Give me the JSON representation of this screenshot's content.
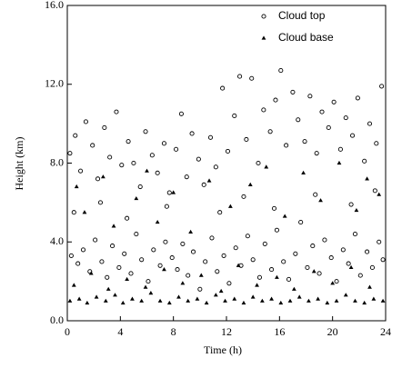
{
  "chart_data": {
    "type": "scatter",
    "xlabel": "Time (h)",
    "ylabel": "Height (km)",
    "xlim": [
      0,
      24
    ],
    "xticks": [
      0,
      4,
      8,
      12,
      16,
      20,
      24
    ],
    "ylim": [
      0,
      16
    ],
    "yticks": [
      {
        "value": 0,
        "label": "0.0"
      },
      {
        "value": 4,
        "label": "4.0"
      },
      {
        "value": 8,
        "label": "8.0"
      },
      {
        "value": 12,
        "label": "12.0"
      },
      {
        "value": 16,
        "label": "16.0"
      }
    ],
    "legend": "upper right",
    "series": [
      {
        "name": "Cloud top",
        "marker": "circle",
        "color": "#000000",
        "x": [
          0.3,
          0.8,
          1.2,
          1.7,
          2.1,
          2.6,
          3.0,
          3.4,
          3.9,
          4.3,
          4.8,
          5.2,
          5.6,
          6.1,
          6.5,
          7.0,
          7.4,
          7.9,
          8.3,
          8.7,
          9.1,
          9.5,
          10.0,
          10.4,
          10.9,
          11.3,
          11.8,
          12.2,
          12.7,
          13.1,
          13.6,
          14.0,
          14.5,
          14.9,
          15.4,
          15.8,
          16.3,
          16.7,
          17.2,
          17.6,
          18.1,
          18.5,
          19.0,
          19.4,
          19.9,
          20.3,
          20.8,
          21.2,
          21.7,
          22.1,
          22.6,
          23.0,
          23.5,
          23.8,
          0.2,
          0.6,
          1.0,
          1.4,
          1.9,
          2.3,
          2.8,
          3.2,
          3.7,
          4.1,
          4.6,
          5.0,
          5.5,
          5.9,
          6.4,
          6.8,
          7.3,
          7.7,
          8.2,
          8.6,
          9.0,
          9.4,
          9.9,
          10.3,
          10.8,
          11.2,
          11.7,
          12.1,
          12.6,
          13.0,
          13.5,
          13.9,
          14.4,
          14.8,
          15.3,
          15.7,
          16.1,
          16.5,
          17.0,
          17.4,
          17.9,
          18.3,
          18.8,
          19.2,
          19.7,
          20.1,
          20.6,
          21.0,
          21.5,
          21.9,
          22.4,
          22.8,
          23.3,
          23.7,
          0.5,
          2.5,
          4.5,
          7.5,
          11.5,
          13.3,
          15.6,
          18.7,
          21.4,
          23.2
        ],
        "values": [
          3.3,
          2.9,
          3.6,
          2.5,
          4.1,
          3.0,
          2.2,
          3.8,
          2.7,
          3.4,
          2.4,
          4.4,
          3.1,
          2.0,
          3.6,
          2.8,
          4.0,
          3.2,
          2.6,
          3.9,
          2.3,
          3.5,
          1.6,
          3.0,
          4.2,
          2.5,
          3.3,
          1.9,
          3.7,
          2.8,
          4.3,
          3.1,
          2.2,
          3.9,
          2.6,
          4.6,
          3.0,
          2.1,
          3.4,
          5.0,
          2.7,
          3.8,
          2.4,
          4.1,
          3.2,
          2.0,
          3.6,
          2.9,
          4.4,
          2.3,
          3.5,
          2.7,
          4.0,
          3.1,
          8.5,
          9.4,
          7.6,
          10.1,
          8.9,
          7.2,
          9.8,
          8.3,
          10.6,
          7.9,
          9.1,
          8.0,
          6.8,
          9.6,
          8.4,
          7.5,
          9.0,
          6.5,
          8.7,
          10.5,
          7.3,
          9.5,
          8.2,
          6.9,
          9.3,
          7.8,
          11.8,
          8.6,
          10.4,
          12.4,
          9.2,
          12.3,
          8.0,
          10.7,
          9.6,
          11.2,
          12.7,
          8.9,
          11.6,
          10.2,
          9.1,
          11.4,
          8.5,
          10.6,
          9.8,
          11.1,
          8.7,
          10.3,
          9.4,
          11.3,
          8.1,
          10.0,
          9.0,
          11.9,
          5.5,
          6.0,
          5.2,
          5.8,
          5.5,
          6.3,
          5.7,
          6.4,
          5.9,
          6.6
        ]
      },
      {
        "name": "Cloud base",
        "marker": "triangle",
        "color": "#000000",
        "x": [
          0.2,
          0.9,
          1.5,
          2.2,
          2.9,
          3.6,
          4.2,
          4.9,
          5.6,
          6.3,
          7.0,
          7.7,
          8.4,
          9.1,
          9.8,
          10.5,
          11.2,
          11.9,
          12.6,
          13.3,
          14.0,
          14.7,
          15.4,
          16.1,
          16.8,
          17.5,
          18.2,
          18.9,
          19.6,
          20.3,
          21.0,
          21.7,
          22.4,
          23.1,
          23.8,
          0.5,
          1.8,
          3.1,
          4.5,
          5.9,
          7.3,
          8.7,
          10.1,
          11.6,
          12.9,
          14.3,
          15.8,
          17.1,
          18.6,
          20.0,
          21.4,
          22.8,
          0.7,
          1.3,
          2.7,
          3.5,
          5.2,
          6.0,
          6.8,
          8.0,
          9.3,
          10.7,
          12.3,
          13.8,
          15.0,
          16.4,
          17.8,
          19.1,
          20.5,
          21.8,
          22.6,
          23.5
        ],
        "values": [
          1.0,
          1.1,
          0.9,
          1.2,
          1.0,
          1.3,
          0.9,
          1.1,
          1.0,
          1.4,
          1.0,
          0.9,
          1.2,
          1.0,
          1.1,
          0.9,
          1.3,
          1.0,
          1.1,
          0.9,
          1.2,
          1.0,
          1.1,
          0.9,
          1.0,
          1.2,
          1.0,
          1.1,
          0.9,
          1.0,
          1.3,
          1.0,
          0.9,
          1.1,
          1.0,
          1.8,
          2.4,
          1.6,
          2.1,
          1.7,
          2.6,
          1.9,
          2.3,
          1.5,
          2.8,
          1.8,
          2.2,
          1.6,
          2.5,
          1.9,
          2.7,
          1.7,
          6.8,
          5.5,
          7.3,
          4.8,
          6.2,
          7.6,
          5.0,
          6.5,
          4.5,
          7.1,
          5.8,
          6.9,
          7.8,
          5.3,
          7.5,
          6.1,
          8.0,
          5.6,
          7.2,
          6.4
        ]
      }
    ]
  }
}
